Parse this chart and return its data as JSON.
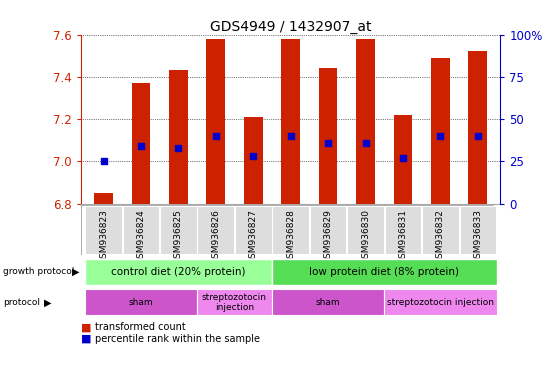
{
  "title": "GDS4949 / 1432907_at",
  "samples": [
    "GSM936823",
    "GSM936824",
    "GSM936825",
    "GSM936826",
    "GSM936827",
    "GSM936828",
    "GSM936829",
    "GSM936830",
    "GSM936831",
    "GSM936832",
    "GSM936833"
  ],
  "transformed_count": [
    6.85,
    7.37,
    7.43,
    7.58,
    7.21,
    7.58,
    7.44,
    7.58,
    7.22,
    7.49,
    7.52
  ],
  "percentile_rank": [
    25,
    34,
    33,
    40,
    28,
    40,
    36,
    36,
    27,
    40,
    40
  ],
  "bar_bottom": 6.8,
  "ylim_left": [
    6.8,
    7.6
  ],
  "ylim_right": [
    0,
    100
  ],
  "yticks_left": [
    6.8,
    7.0,
    7.2,
    7.4,
    7.6
  ],
  "yticks_right": [
    0,
    25,
    50,
    75,
    100
  ],
  "ytick_labels_right": [
    "0",
    "25",
    "50",
    "75",
    "100%"
  ],
  "bar_color": "#cc2200",
  "dot_color": "#0000cc",
  "left_axis_color": "#cc2200",
  "right_axis_color": "#0000cc",
  "growth_protocol_groups": [
    {
      "label": "control diet (20% protein)",
      "start": 0,
      "end": 4,
      "color": "#99ff99"
    },
    {
      "label": "low protein diet (8% protein)",
      "start": 5,
      "end": 10,
      "color": "#55dd55"
    }
  ],
  "protocol_groups": [
    {
      "label": "sham",
      "start": 0,
      "end": 2,
      "color": "#cc55cc"
    },
    {
      "label": "streptozotocin\ninjection",
      "start": 3,
      "end": 4,
      "color": "#ee88ee"
    },
    {
      "label": "sham",
      "start": 5,
      "end": 7,
      "color": "#cc55cc"
    },
    {
      "label": "streptozotocin injection",
      "start": 8,
      "end": 10,
      "color": "#ee88ee"
    }
  ],
  "tick_label_fontsize": 6.5,
  "title_fontsize": 10,
  "axis_label_fontsize": 7
}
